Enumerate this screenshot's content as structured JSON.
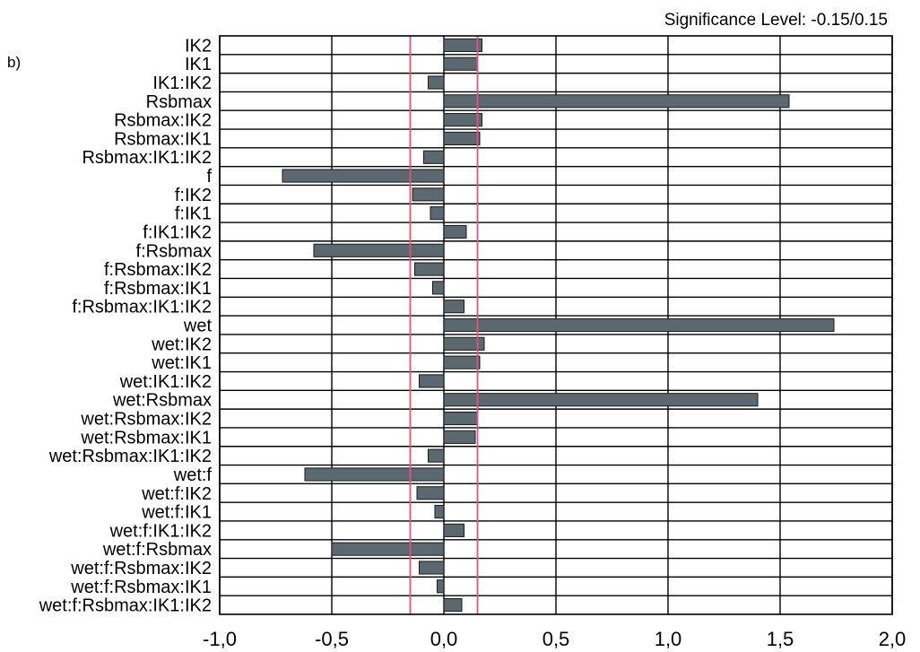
{
  "panel_label": "b)",
  "chart_data": {
    "type": "bar",
    "orientation": "horizontal",
    "title": "Significance Level: -0.15/0.15",
    "significance_level": [
      -0.15,
      0.15
    ],
    "xlim": [
      -1.0,
      2.0
    ],
    "x_ticks": [
      -1.0,
      -0.5,
      0.0,
      0.5,
      1.0,
      1.5,
      2.0
    ],
    "x_tick_labels": [
      "-1,0",
      "-0,5",
      "0,0",
      "0,5",
      "1,0",
      "1,5",
      "2,0"
    ],
    "grid": true,
    "colors": {
      "bar": "#5b6870",
      "bar_edge": "#1a1a1a",
      "threshold": "#e8507a",
      "grid": "#000000"
    },
    "categories": [
      "IK2",
      "IK1",
      "IK1:IK2",
      "Rsbmax",
      "Rsbmax:IK2",
      "Rsbmax:IK1",
      "Rsbmax:IK1:IK2",
      "f",
      "f:IK2",
      "f:IK1",
      "f:IK1:IK2",
      "f:Rsbmax",
      "f:Rsbmax:IK2",
      "f:Rsbmax:IK1",
      "f:Rsbmax:IK1:IK2",
      "wet",
      "wet:IK2",
      "wet:IK1",
      "wet:IK1:IK2",
      "wet:Rsbmax",
      "wet:Rsbmax:IK2",
      "wet:Rsbmax:IK1",
      "wet:Rsbmax:IK1:IK2",
      "wet:f",
      "wet:f:IK2",
      "wet:f:IK1",
      "wet:f:IK1:IK2",
      "wet:f:Rsbmax",
      "wet:f:Rsbmax:IK2",
      "wet:f:Rsbmax:IK1",
      "wet:f:Rsbmax:IK1:IK2"
    ],
    "values": [
      0.17,
      0.15,
      -0.07,
      1.54,
      0.17,
      0.16,
      -0.09,
      -0.72,
      -0.14,
      -0.06,
      0.1,
      -0.58,
      -0.13,
      -0.05,
      0.09,
      1.74,
      0.18,
      0.16,
      -0.11,
      1.4,
      0.15,
      0.14,
      -0.07,
      -0.62,
      -0.12,
      -0.04,
      0.09,
      -0.5,
      -0.11,
      -0.03,
      0.08
    ]
  }
}
